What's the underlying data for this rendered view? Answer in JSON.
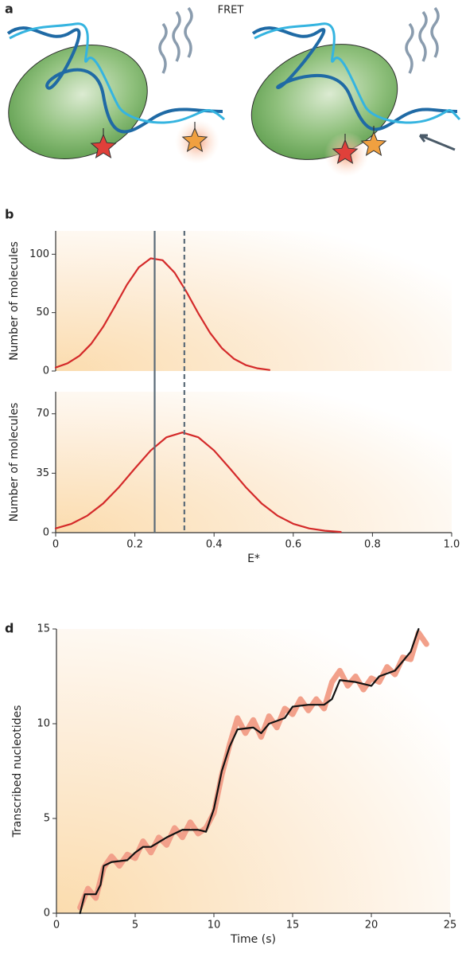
{
  "figure": {
    "panels": [
      "a",
      "b",
      "d"
    ],
    "a_title": "FRET"
  },
  "chart_data": [
    {
      "type": "line",
      "ylabel": "Number of molecules",
      "xlim": [
        0,
        1
      ],
      "ylim": [
        0,
        120
      ],
      "yticks": [
        0,
        50,
        100
      ],
      "vlines": [
        {
          "value": 0.25,
          "style": "solid",
          "color": "#5b6b78"
        },
        {
          "value": 0.325,
          "style": "dashed",
          "color": "#5b6b78"
        }
      ],
      "x": [
        0,
        0.03,
        0.06,
        0.09,
        0.12,
        0.15,
        0.18,
        0.21,
        0.24,
        0.27,
        0.3,
        0.33,
        0.36,
        0.39,
        0.42,
        0.45,
        0.48,
        0.51,
        0.54
      ],
      "series": [
        {
          "color": "#d42a2a",
          "values": [
            3.0,
            6.6,
            13.0,
            23.4,
            37.9,
            55.6,
            73.9,
            88.8,
            96.5,
            94.9,
            84.4,
            68.0,
            49.5,
            32.6,
            19.5,
            10.5,
            5.1,
            2.3,
            0.9
          ]
        }
      ]
    },
    {
      "type": "line",
      "ylabel": "Number of molecules",
      "xlabel": "E*",
      "xlim": [
        0,
        1
      ],
      "ylim": [
        0,
        83
      ],
      "yticks": [
        0,
        35,
        70
      ],
      "xticks": [
        0,
        0.2,
        0.4,
        0.6,
        0.8,
        {
          "value": 1,
          "label": "1.0"
        }
      ],
      "x": [
        0,
        0.04,
        0.08,
        0.12,
        0.16,
        0.2,
        0.24,
        0.28,
        0.32,
        0.36,
        0.4,
        0.44,
        0.48,
        0.52,
        0.56,
        0.6,
        0.64,
        0.68,
        0.72
      ],
      "series": [
        {
          "color": "#d42a2a",
          "values": [
            2.5,
            5.2,
            10.0,
            17.2,
            26.8,
            37.8,
            48.4,
            56.2,
            59,
            56.2,
            48.4,
            37.8,
            26.8,
            17.2,
            10.0,
            5.2,
            2.5,
            1.1,
            0.4
          ]
        }
      ]
    },
    {
      "type": "line",
      "ylabel": "Transcribed nucleotides",
      "xlabel": "Time (s)",
      "xlim": [
        0,
        25
      ],
      "ylim": [
        0,
        15
      ],
      "xticks": [
        0,
        5,
        10,
        15,
        20,
        25
      ],
      "yticks": [
        0,
        5,
        10,
        15
      ],
      "series": [
        {
          "color": "#f2a08a",
          "x": [
            1.5,
            2,
            2.5,
            3,
            3.5,
            4,
            4.5,
            5,
            5.5,
            6,
            6.5,
            7,
            7.5,
            8,
            8.5,
            9,
            9.5,
            10,
            10.5,
            11,
            11.5,
            12,
            12.5,
            13,
            13.5,
            14,
            14.5,
            15,
            15.5,
            16,
            16.5,
            17,
            17.5,
            18,
            18.5,
            19,
            19.5,
            20,
            20.5,
            21,
            21.5,
            22,
            22.5,
            23,
            23.5
          ],
          "values": [
            0.3,
            1.3,
            0.8,
            2.4,
            3.0,
            2.5,
            3.1,
            2.9,
            3.8,
            3.2,
            4.0,
            3.6,
            4.5,
            4.0,
            4.8,
            4.2,
            4.5,
            5.3,
            7.3,
            8.9,
            10.3,
            9.5,
            10.2,
            9.3,
            10.4,
            9.8,
            10.8,
            10.5,
            11.3,
            10.7,
            11.3,
            10.8,
            12.2,
            12.8,
            12.0,
            12.5,
            11.8,
            12.4,
            12.2,
            13.0,
            12.6,
            13.5,
            13.4,
            14.8,
            14.2
          ]
        },
        {
          "color": "#111111",
          "x": [
            1.5,
            1.8,
            2.5,
            2.8,
            3.0,
            3.5,
            4.5,
            5.0,
            5.5,
            6.0,
            7.0,
            8.0,
            9.0,
            9.5,
            10.0,
            10.5,
            11.0,
            11.5,
            12.5,
            13.0,
            13.5,
            14.5,
            15.0,
            16.0,
            17.0,
            17.5,
            18.0,
            19.0,
            20.0,
            20.5,
            21.5,
            22.0,
            22.5,
            23.0
          ],
          "values": [
            0,
            1.0,
            1.0,
            1.5,
            2.5,
            2.7,
            2.8,
            3.2,
            3.5,
            3.5,
            4.0,
            4.4,
            4.4,
            4.3,
            5.5,
            7.5,
            8.8,
            9.7,
            9.8,
            9.5,
            10.0,
            10.3,
            10.9,
            11.0,
            11.0,
            11.3,
            12.3,
            12.2,
            12.0,
            12.5,
            12.8,
            13.3,
            13.8,
            15.0
          ]
        }
      ]
    }
  ]
}
